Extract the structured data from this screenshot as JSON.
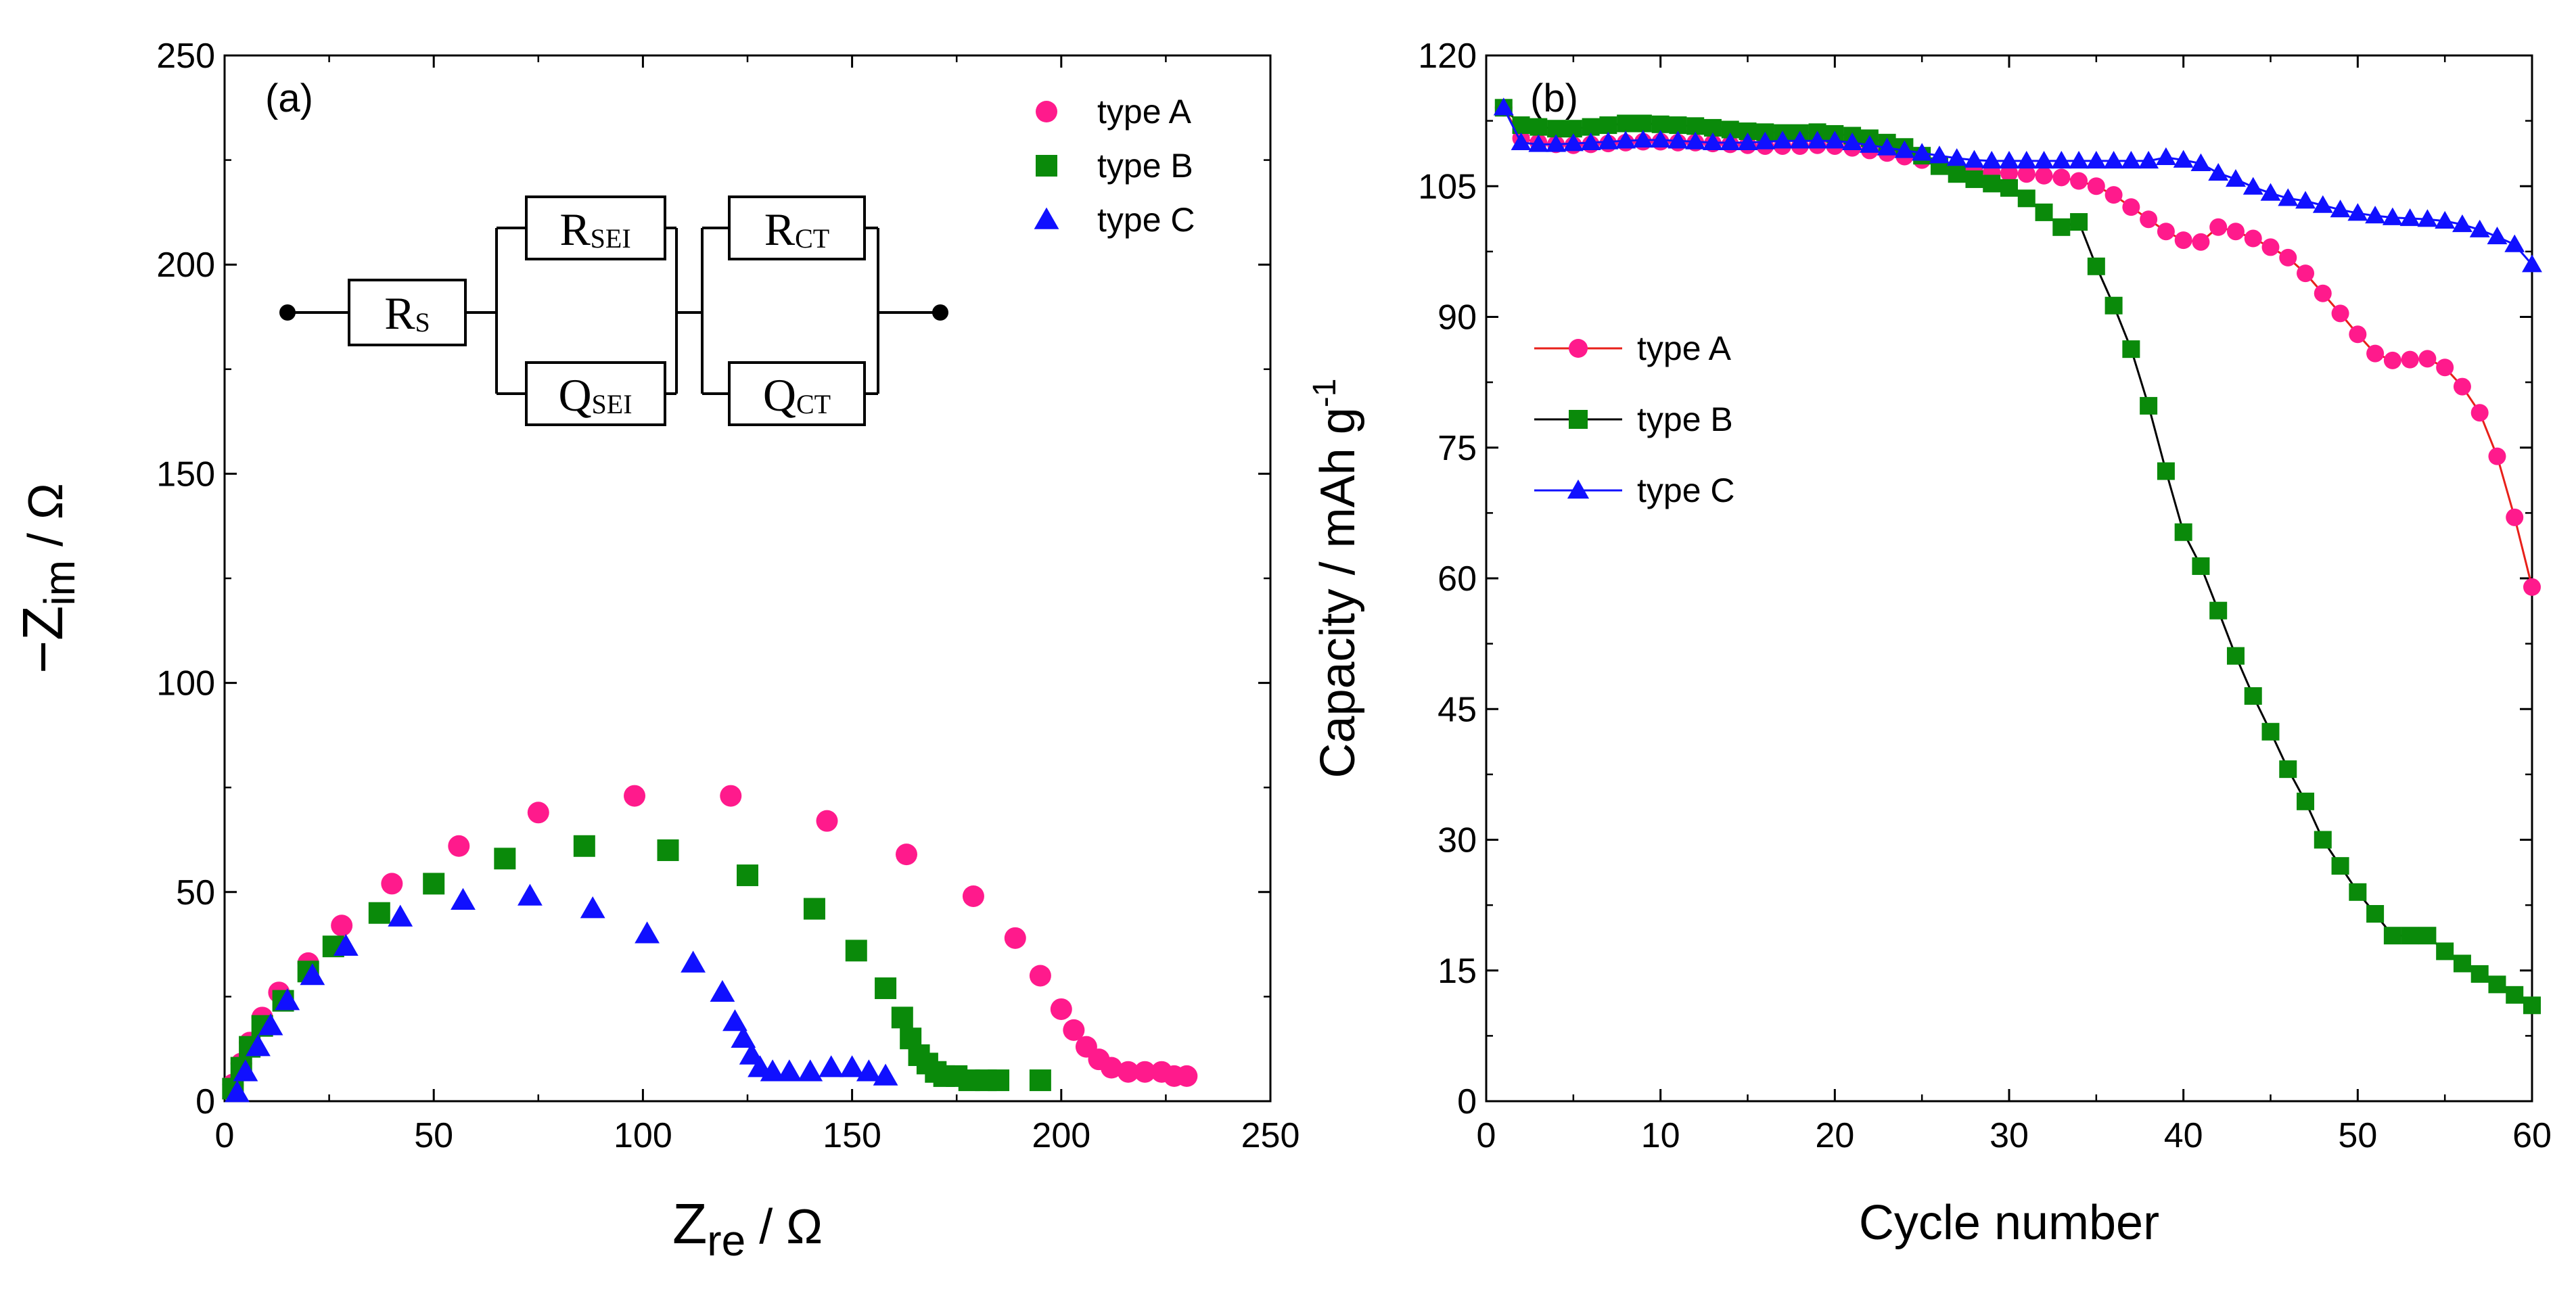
{
  "chart_data": [
    {
      "type": "scatter",
      "panel_label": "(a)",
      "xlabel": "Z",
      "xlabel_sub": "re",
      "xlabel_unit": " / Ω",
      "ylabel": "−Z",
      "ylabel_sub": "im",
      "ylabel_unit": " / Ω",
      "xlim": [
        0,
        250
      ],
      "ylim": [
        0,
        250
      ],
      "xticks": [
        0,
        50,
        100,
        150,
        200,
        250
      ],
      "yticks": [
        0,
        50,
        100,
        150,
        200,
        250
      ],
      "legend_position": "top-right",
      "circuit": {
        "rs": {
          "main": "R",
          "sub": "S"
        },
        "r_sei": {
          "main": "R",
          "sub": "SEI"
        },
        "q_sei": {
          "main": "Q",
          "sub": "SEI"
        },
        "r_ct": {
          "main": "R",
          "sub": "CT"
        },
        "q_ct": {
          "main": "Q",
          "sub": "CT"
        }
      },
      "series": [
        {
          "name": "type A",
          "color": "#ff1a8c",
          "marker": "circle",
          "x": [
            2,
            4,
            6,
            9,
            13,
            20,
            28,
            40,
            56,
            75,
            98,
            121,
            144,
            163,
            179,
            189,
            195,
            200,
            203,
            206,
            209,
            212,
            216,
            220,
            224,
            227,
            230
          ],
          "y": [
            4,
            9,
            14,
            20,
            26,
            33,
            42,
            52,
            61,
            69,
            73,
            73,
            67,
            59,
            49,
            39,
            30,
            22,
            17,
            13,
            10,
            8,
            7,
            7,
            7,
            6,
            6
          ]
        },
        {
          "name": "type B",
          "color": "#0a8a0a",
          "marker": "square",
          "x": [
            2,
            4,
            6,
            9,
            14,
            20,
            26,
            37,
            50,
            67,
            86,
            106,
            125,
            141,
            151,
            158,
            162,
            164,
            166,
            168,
            170,
            172,
            175,
            178,
            182,
            185,
            195
          ],
          "y": [
            3,
            8,
            13,
            18,
            24,
            31,
            37,
            45,
            52,
            58,
            61,
            60,
            54,
            46,
            36,
            27,
            20,
            15,
            11,
            9,
            7,
            6,
            6,
            5,
            5,
            5,
            5
          ]
        },
        {
          "name": "type C",
          "color": "#1010ff",
          "marker": "triangle",
          "x": [
            3,
            5,
            8,
            11,
            15,
            21,
            29,
            42,
            57,
            73,
            88,
            101,
            112,
            119,
            122,
            124,
            126,
            128,
            131,
            135,
            140,
            145,
            150,
            154,
            158
          ],
          "y": [
            2,
            7,
            13,
            18,
            24,
            30,
            37,
            44,
            48,
            49,
            46,
            40,
            33,
            26,
            19,
            15,
            11,
            8,
            7,
            7,
            7,
            8,
            8,
            7,
            6
          ]
        }
      ]
    },
    {
      "type": "line",
      "panel_label": "(b)",
      "xlabel": "Cycle number",
      "ylabel": "Capacity / mAh g",
      "ylabel_sup": "-1",
      "xlim": [
        0,
        60
      ],
      "ylim": [
        0,
        120
      ],
      "xticks": [
        0,
        10,
        20,
        30,
        40,
        50,
        60
      ],
      "yticks": [
        0,
        15,
        30,
        45,
        60,
        75,
        90,
        105,
        120
      ],
      "legend_position": "center-left",
      "x": [
        1,
        2,
        3,
        4,
        5,
        6,
        7,
        8,
        9,
        10,
        11,
        12,
        13,
        14,
        15,
        16,
        17,
        18,
        19,
        20,
        21,
        22,
        23,
        24,
        25,
        26,
        27,
        28,
        29,
        30,
        31,
        32,
        33,
        34,
        35,
        36,
        37,
        38,
        39,
        40,
        41,
        42,
        43,
        44,
        45,
        46,
        47,
        48,
        49,
        50,
        51,
        52,
        53,
        54,
        55,
        56,
        57,
        58,
        59,
        60
      ],
      "series": [
        {
          "name": "type A",
          "color": "#ff1a8c",
          "line_color": "#e8201a",
          "marker": "circle",
          "values": [
            114,
            110.5,
            110,
            109.8,
            109.7,
            109.8,
            109.9,
            110,
            110.1,
            110.1,
            110,
            110,
            109.9,
            109.8,
            109.7,
            109.6,
            109.6,
            109.6,
            109.7,
            109.6,
            109.4,
            109.1,
            108.8,
            108.4,
            108,
            107.6,
            107.2,
            106.8,
            106.6,
            106.5,
            106.4,
            106.2,
            106,
            105.6,
            105,
            104,
            102.6,
            101.2,
            99.8,
            98.8,
            98.6,
            100.3,
            99.8,
            99,
            98,
            96.8,
            95,
            92.7,
            90.4,
            88,
            85.8,
            85,
            85.1,
            85.2,
            84.2,
            82,
            79,
            74,
            67,
            59
          ]
        },
        {
          "name": "type B",
          "color": "#0a8a0a",
          "line_color": "#000000",
          "marker": "square",
          "values": [
            114,
            112,
            111.8,
            111.6,
            111.6,
            111.8,
            112,
            112.2,
            112.2,
            112.1,
            112,
            111.9,
            111.7,
            111.5,
            111.3,
            111.2,
            111.1,
            111.1,
            111.2,
            111,
            110.8,
            110.5,
            110,
            109.5,
            108.5,
            107.3,
            106.4,
            105.8,
            105.3,
            104.8,
            103.6,
            102,
            100.3,
            100.9,
            95.8,
            91.3,
            86.3,
            79.8,
            72.3,
            65.3,
            61.4,
            56.3,
            51.1,
            46.5,
            42.4,
            38.1,
            34.4,
            30,
            27,
            24,
            21.5,
            19,
            19,
            19,
            17.2,
            15.8,
            14.6,
            13.4,
            12.2,
            11
          ]
        },
        {
          "name": "type C",
          "color": "#1010ff",
          "line_color": "#1010ff",
          "marker": "triangle",
          "values": [
            114,
            110,
            109.8,
            109.8,
            109.9,
            110,
            110.1,
            110.2,
            110.3,
            110.3,
            110.2,
            110.1,
            110,
            110,
            110,
            110.1,
            110.2,
            110.2,
            110.2,
            110.2,
            110,
            109.7,
            109.4,
            109.1,
            108.8,
            108.5,
            108.2,
            108,
            107.9,
            107.9,
            107.9,
            107.9,
            107.9,
            107.9,
            107.9,
            107.9,
            107.9,
            107.9,
            108.3,
            108,
            107.6,
            106.5,
            105.8,
            104.9,
            104.2,
            103.6,
            103.3,
            102.8,
            102.3,
            101.9,
            101.6,
            101.4,
            101.3,
            101.2,
            101,
            100.6,
            100,
            99.2,
            98.3,
            96
          ]
        }
      ]
    }
  ]
}
